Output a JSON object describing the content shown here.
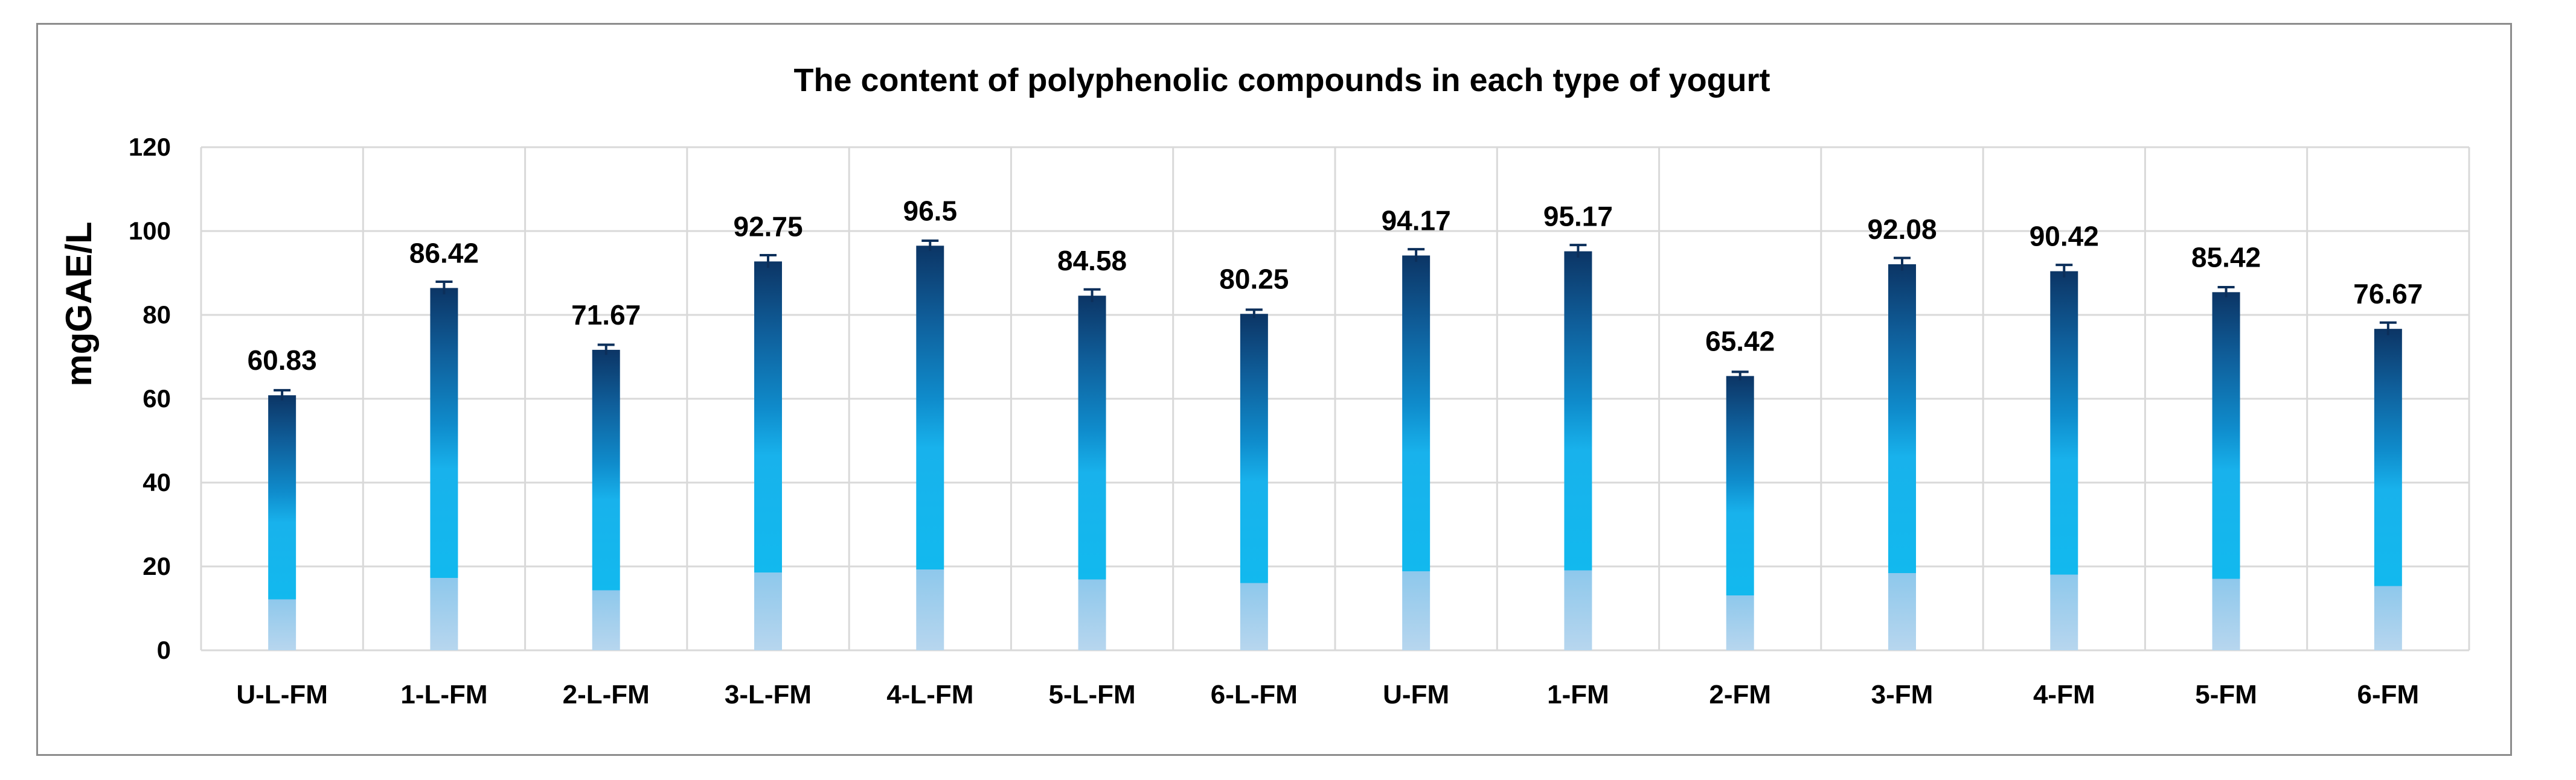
{
  "chart_data": {
    "type": "bar",
    "title": "The content of polyphenolic compounds  in each type of yogurt",
    "xlabel": "",
    "ylabel": "mgGAE/L",
    "ylim": [
      0,
      120
    ],
    "yticks": [
      0,
      20,
      40,
      60,
      80,
      100,
      120
    ],
    "grid": true,
    "legend": "none",
    "error_bars": true,
    "categories": [
      "U-L-FM",
      "1-L-FM",
      "2-L-FM",
      "3-L-FM",
      "4-L-FM",
      "5-L-FM",
      "6-L-FM",
      "U-FM",
      "1-FM",
      "2-FM",
      "3-FM",
      "4-FM",
      "5-FM",
      "6-FM"
    ],
    "values": [
      60.83,
      86.42,
      71.67,
      92.75,
      96.5,
      84.58,
      80.25,
      94.17,
      95.17,
      65.42,
      92.08,
      90.42,
      85.42,
      76.67
    ],
    "value_labels": [
      "60.83",
      "86.42",
      "71.67",
      "92.75",
      "96.5",
      "84.58",
      "80.25",
      "94.17",
      "95.17",
      "65.42",
      "92.08",
      "90.42",
      "85.42",
      "76.67"
    ],
    "errors": [
      1.2,
      1.5,
      1.2,
      1.5,
      1.2,
      1.5,
      1.0,
      1.5,
      1.5,
      1.0,
      1.5,
      1.5,
      1.2,
      1.5
    ],
    "colors": {
      "bar_top": "#0d3c6e",
      "bar_mid": "#1aa7e0",
      "bar_bottom": "#a9cdea",
      "grid": "#d9d9d9",
      "frame": "#8c8c8c"
    }
  }
}
